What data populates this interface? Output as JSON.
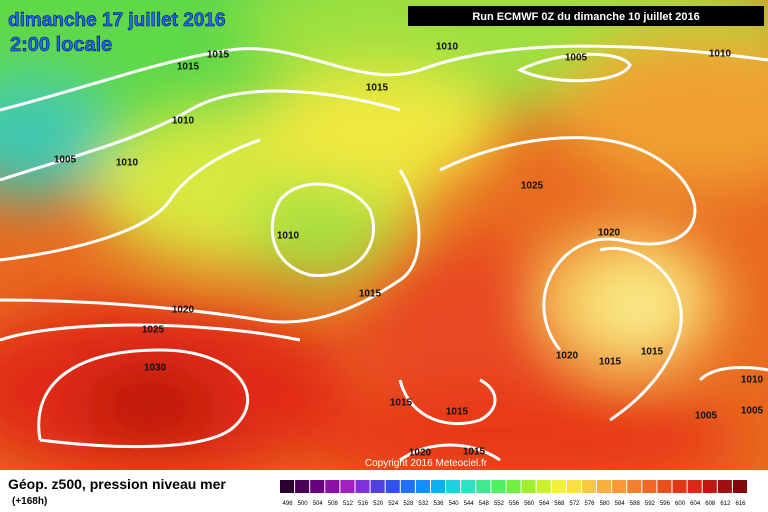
{
  "header": {
    "date": "dimanche 17 juillet 2016",
    "time": "2:00 locale",
    "run": "Run ECMWF 0Z du dimanche 10 juillet 2016"
  },
  "isobar_labels": [
    "1015",
    "1015",
    "1010",
    "1005",
    "1010",
    "1015",
    "1010",
    "1005",
    "1010",
    "1025",
    "1010",
    "1020",
    "1015",
    "1020",
    "1025",
    "1030",
    "1020",
    "1015",
    "1015",
    "1010",
    "1015",
    "1015",
    "1005",
    "1005",
    "1020",
    "1015"
  ],
  "copyright": "Copyright 2016 Meteociel.fr",
  "footer": {
    "title": "Géop. z500, pression niveau mer",
    "lead": "(+168h)"
  },
  "scale": {
    "values": [
      496,
      500,
      504,
      508,
      512,
      516,
      520,
      524,
      528,
      532,
      536,
      540,
      544,
      548,
      552,
      556,
      560,
      564,
      568,
      572,
      576,
      580,
      584,
      588,
      592,
      596,
      600,
      604,
      608,
      612,
      616
    ],
    "colors": [
      "#2a0030",
      "#4a0058",
      "#6a0080",
      "#8a10a8",
      "#a020c0",
      "#8030d8",
      "#5040e0",
      "#3050f0",
      "#2070f8",
      "#1090f8",
      "#10b0f0",
      "#20d0e0",
      "#30e0c0",
      "#40e890",
      "#50f060",
      "#70f040",
      "#a0f030",
      "#c8f030",
      "#f0f040",
      "#f8e040",
      "#f8c840",
      "#f8b040",
      "#f89838",
      "#f08030",
      "#f06828",
      "#e85020",
      "#e03818",
      "#d82818",
      "#c01810",
      "#a01010",
      "#800808"
    ]
  }
}
